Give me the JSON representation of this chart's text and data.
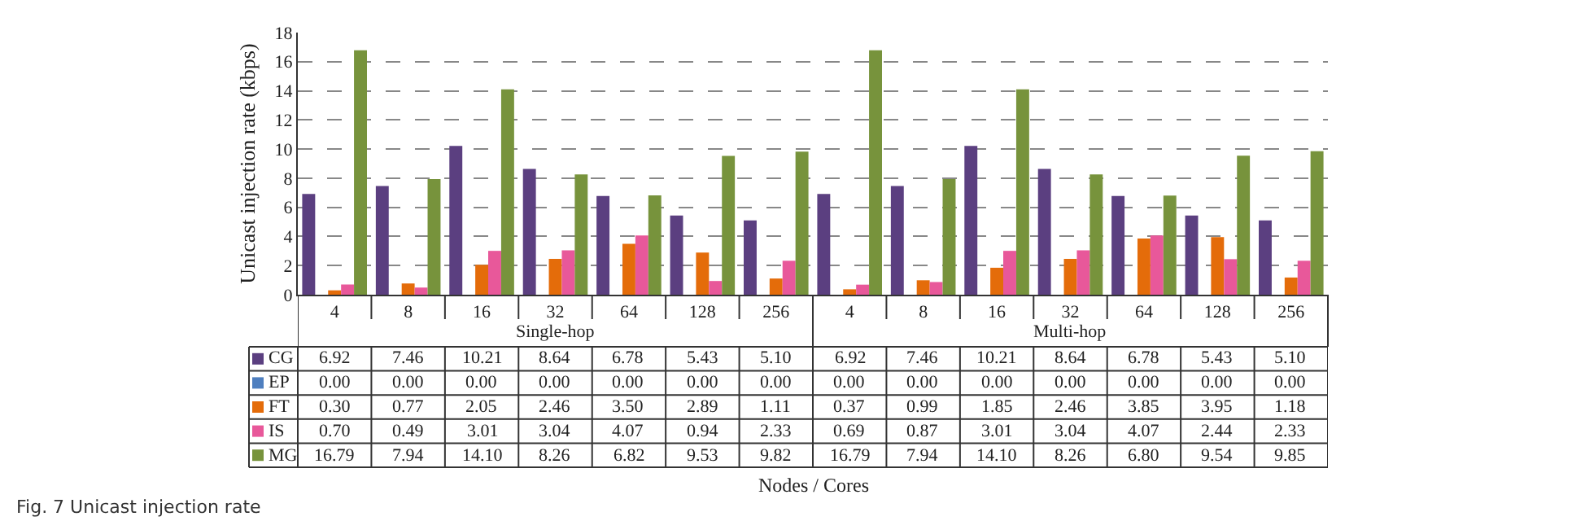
{
  "chart_data": {
    "type": "bar",
    "ylabel": "Unicast injection rate (kbps)",
    "legend": "bottom left",
    "categories": [
      "4",
      "8",
      "16",
      "32",
      "64",
      "128",
      "256",
      "4",
      "8",
      "16",
      "32",
      "64",
      "128",
      "256"
    ],
    "series": [
      {
        "name": "CG",
        "color": "#5b3f80",
        "values": [
          6.92,
          7.46,
          10.21,
          8.64,
          6.78,
          5.43,
          5.1,
          6.92,
          7.46,
          10.21,
          8.64,
          6.78,
          5.43,
          5.1
        ],
        "value_labels": [
          "6.92",
          "7.46",
          "10.21",
          "8.64",
          "6.78",
          "5.43",
          "5.10",
          "6.92",
          "7.46",
          "10.21",
          "8.64",
          "6.78",
          "5.43",
          "5.10"
        ]
      },
      {
        "name": "EP",
        "color": "#4f7fbf",
        "values": [
          0,
          0,
          0,
          0,
          0,
          0,
          0,
          0,
          0,
          0,
          0,
          0,
          0,
          0
        ],
        "value_labels": [
          "0.00",
          "0.00",
          "0.00",
          "0.00",
          "0.00",
          "0.00",
          "0.00",
          "0.00",
          "0.00",
          "0.00",
          "0.00",
          "0.00",
          "0.00",
          "0.00"
        ]
      },
      {
        "name": "FT",
        "color": "#e46c0a",
        "values": [
          0.3,
          0.77,
          2.05,
          2.46,
          3.5,
          2.89,
          1.11,
          0.37,
          0.99,
          1.85,
          2.46,
          3.85,
          3.95,
          1.18
        ],
        "value_labels": [
          "0.30",
          "0.77",
          "2.05",
          "2.46",
          "3.50",
          "2.89",
          "1.11",
          "0.37",
          "0.99",
          "1.85",
          "2.46",
          "3.85",
          "3.95",
          "1.18"
        ]
      },
      {
        "name": "IS",
        "color": "#e8589a",
        "values": [
          0.7,
          0.49,
          3.01,
          3.04,
          4.07,
          0.94,
          2.33,
          0.69,
          0.87,
          3.01,
          3.04,
          4.07,
          2.44,
          2.33
        ],
        "value_labels": [
          "0.70",
          "0.49",
          "3.01",
          "3.04",
          "4.07",
          "0.94",
          "2.33",
          "0.69",
          "0.87",
          "3.01",
          "3.04",
          "4.07",
          "2.44",
          "2.33"
        ]
      },
      {
        "name": "MG",
        "color": "#77933c",
        "values": [
          16.79,
          7.94,
          14.1,
          8.26,
          6.82,
          9.53,
          9.82,
          16.79,
          7.94,
          14.1,
          8.26,
          6.8,
          9.54,
          9.85
        ],
        "value_labels": [
          "16.79",
          "7.94",
          "14.10",
          "8.26",
          "6.82",
          "9.53",
          "9.82",
          "16.79",
          "7.94",
          "14.10",
          "8.26",
          "6.80",
          "9.54",
          "9.85"
        ]
      }
    ],
    "ylim": [
      0,
      18
    ],
    "yticks": [
      0,
      2,
      4,
      6,
      8,
      10,
      12,
      14,
      16,
      18
    ],
    "grid": "y",
    "annotations": [
      "Single-hop",
      "Multi-hop",
      "Nodes / Cores",
      "Fig. 7 Unicast injection rate"
    ]
  }
}
